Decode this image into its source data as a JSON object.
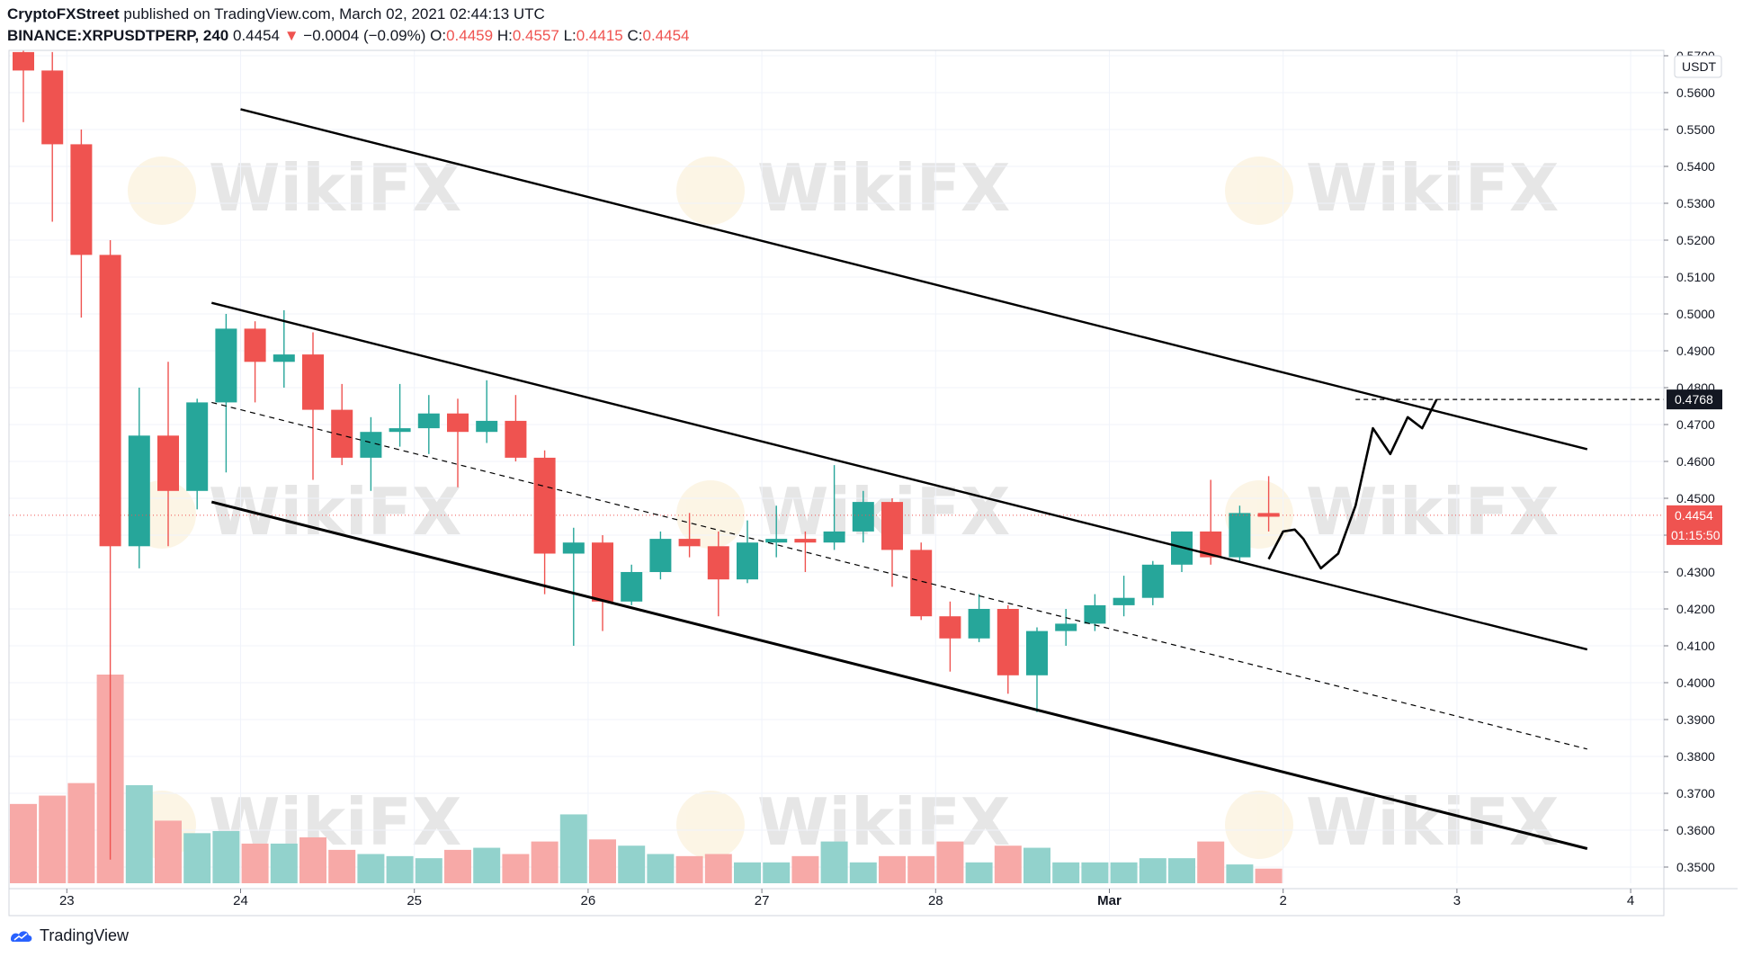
{
  "header": {
    "author": "CryptoFXStreet",
    "published": "published on TradingView.com, March 02, 2021 02:44:13 UTC",
    "symbol": "BINANCE:XRPUSDTPERP, 240",
    "last": "0.4454",
    "arrow": "▼",
    "change": "−0.0004 (−0.09%)",
    "o_label": "O:",
    "o": "0.4459",
    "h_label": "H:",
    "h": "0.4557",
    "l_label": "L:",
    "l": "0.4415",
    "c_label": "C:",
    "c": "0.4454"
  },
  "footer": {
    "brand": "TradingView"
  },
  "watermark": "WikiFX",
  "colors": {
    "up": "#26a69a",
    "down": "#ef5350",
    "vol_up": "#92d2cc",
    "vol_down": "#f7a9a7"
  },
  "chart_data": {
    "type": "candlestick",
    "y_unit": "USDT",
    "ylim": [
      0.345,
      0.571
    ],
    "y_ticks": [
      "0.5700",
      "0.5600",
      "0.5500",
      "0.5400",
      "0.5300",
      "0.5200",
      "0.5100",
      "0.5000",
      "0.4900",
      "0.4800",
      "0.4700",
      "0.4600",
      "0.4500",
      "0.4400",
      "0.4300",
      "0.4200",
      "0.4100",
      "0.4000",
      "0.3900",
      "0.3800",
      "0.3700",
      "0.3600",
      "0.3500"
    ],
    "x_ticks": [
      {
        "label": "23",
        "i": 1.5
      },
      {
        "label": "24",
        "i": 7.5
      },
      {
        "label": "25",
        "i": 13.5
      },
      {
        "label": "26",
        "i": 19.5
      },
      {
        "label": "27",
        "i": 25.5
      },
      {
        "label": "28",
        "i": 31.5
      },
      {
        "label": "Mar",
        "i": 37.5
      },
      {
        "label": "2",
        "i": 43.5
      },
      {
        "label": "3",
        "i": 49.5
      },
      {
        "label": "4",
        "i": 55.5
      }
    ],
    "candles": [
      {
        "o": 0.571,
        "h": 0.575,
        "l": 0.552,
        "c": 0.566
      },
      {
        "o": 0.566,
        "h": 0.571,
        "l": 0.525,
        "c": 0.546
      },
      {
        "o": 0.546,
        "h": 0.55,
        "l": 0.499,
        "c": 0.516
      },
      {
        "o": 0.516,
        "h": 0.52,
        "l": 0.352,
        "c": 0.437
      },
      {
        "o": 0.437,
        "h": 0.48,
        "l": 0.431,
        "c": 0.467
      },
      {
        "o": 0.467,
        "h": 0.487,
        "l": 0.437,
        "c": 0.452
      },
      {
        "o": 0.452,
        "h": 0.477,
        "l": 0.447,
        "c": 0.476
      },
      {
        "o": 0.476,
        "h": 0.5,
        "l": 0.457,
        "c": 0.496
      },
      {
        "o": 0.496,
        "h": 0.498,
        "l": 0.476,
        "c": 0.487
      },
      {
        "o": 0.487,
        "h": 0.501,
        "l": 0.48,
        "c": 0.489
      },
      {
        "o": 0.489,
        "h": 0.495,
        "l": 0.455,
        "c": 0.474
      },
      {
        "o": 0.474,
        "h": 0.481,
        "l": 0.459,
        "c": 0.461
      },
      {
        "o": 0.461,
        "h": 0.472,
        "l": 0.452,
        "c": 0.468
      },
      {
        "o": 0.468,
        "h": 0.481,
        "l": 0.464,
        "c": 0.469
      },
      {
        "o": 0.469,
        "h": 0.478,
        "l": 0.462,
        "c": 0.473
      },
      {
        "o": 0.473,
        "h": 0.477,
        "l": 0.453,
        "c": 0.468
      },
      {
        "o": 0.468,
        "h": 0.482,
        "l": 0.465,
        "c": 0.471
      },
      {
        "o": 0.471,
        "h": 0.478,
        "l": 0.46,
        "c": 0.461
      },
      {
        "o": 0.461,
        "h": 0.463,
        "l": 0.424,
        "c": 0.435
      },
      {
        "o": 0.435,
        "h": 0.442,
        "l": 0.41,
        "c": 0.438
      },
      {
        "o": 0.438,
        "h": 0.44,
        "l": 0.414,
        "c": 0.422
      },
      {
        "o": 0.422,
        "h": 0.432,
        "l": 0.421,
        "c": 0.43
      },
      {
        "o": 0.43,
        "h": 0.441,
        "l": 0.428,
        "c": 0.439
      },
      {
        "o": 0.439,
        "h": 0.446,
        "l": 0.434,
        "c": 0.437
      },
      {
        "o": 0.437,
        "h": 0.441,
        "l": 0.418,
        "c": 0.428
      },
      {
        "o": 0.428,
        "h": 0.444,
        "l": 0.427,
        "c": 0.438
      },
      {
        "o": 0.438,
        "h": 0.448,
        "l": 0.434,
        "c": 0.439
      },
      {
        "o": 0.439,
        "h": 0.441,
        "l": 0.43,
        "c": 0.438
      },
      {
        "o": 0.438,
        "h": 0.459,
        "l": 0.436,
        "c": 0.441
      },
      {
        "o": 0.441,
        "h": 0.452,
        "l": 0.438,
        "c": 0.449
      },
      {
        "o": 0.449,
        "h": 0.45,
        "l": 0.426,
        "c": 0.436
      },
      {
        "o": 0.436,
        "h": 0.438,
        "l": 0.417,
        "c": 0.418
      },
      {
        "o": 0.418,
        "h": 0.422,
        "l": 0.403,
        "c": 0.412
      },
      {
        "o": 0.412,
        "h": 0.424,
        "l": 0.411,
        "c": 0.42
      },
      {
        "o": 0.42,
        "h": 0.421,
        "l": 0.397,
        "c": 0.402
      },
      {
        "o": 0.402,
        "h": 0.415,
        "l": 0.392,
        "c": 0.414
      },
      {
        "o": 0.414,
        "h": 0.42,
        "l": 0.41,
        "c": 0.416
      },
      {
        "o": 0.416,
        "h": 0.424,
        "l": 0.414,
        "c": 0.421
      },
      {
        "o": 0.421,
        "h": 0.429,
        "l": 0.418,
        "c": 0.423
      },
      {
        "o": 0.423,
        "h": 0.433,
        "l": 0.421,
        "c": 0.432
      },
      {
        "o": 0.432,
        "h": 0.441,
        "l": 0.43,
        "c": 0.441
      },
      {
        "o": 0.441,
        "h": 0.455,
        "l": 0.432,
        "c": 0.434
      },
      {
        "o": 0.434,
        "h": 0.448,
        "l": 0.433,
        "c": 0.446
      },
      {
        "o": 0.446,
        "h": 0.456,
        "l": 0.441,
        "c": 0.445
      }
    ],
    "volume_max": 1.0,
    "volumes": [
      0.38,
      0.42,
      0.48,
      1.0,
      0.47,
      0.3,
      0.24,
      0.25,
      0.19,
      0.19,
      0.22,
      0.16,
      0.14,
      0.13,
      0.12,
      0.16,
      0.17,
      0.14,
      0.2,
      0.33,
      0.21,
      0.18,
      0.14,
      0.13,
      0.14,
      0.1,
      0.1,
      0.13,
      0.2,
      0.1,
      0.13,
      0.13,
      0.2,
      0.1,
      0.18,
      0.17,
      0.1,
      0.1,
      0.1,
      0.12,
      0.12,
      0.2,
      0.09,
      0.07
    ],
    "current_price": {
      "value": 0.4454,
      "label": "0.4454",
      "countdown": "01:15:50"
    },
    "target_price": {
      "value": 0.4768,
      "label": "0.4768"
    },
    "channels": [
      {
        "name": "upper-channel-line",
        "style": "solid",
        "p1": {
          "i": 7.5,
          "v": 0.5555
        },
        "p2": {
          "i": 54.0,
          "v": 0.4633
        }
      },
      {
        "name": "middle-channel-top",
        "style": "solid",
        "p1": {
          "i": 6.5,
          "v": 0.503
        },
        "p2": {
          "i": 54.0,
          "v": 0.409
        }
      },
      {
        "name": "middle-dashed-line",
        "style": "dashed",
        "p1": {
          "i": 6.5,
          "v": 0.476
        },
        "p2": {
          "i": 54.0,
          "v": 0.382
        }
      },
      {
        "name": "lower-channel-line",
        "style": "solid",
        "p1": {
          "i": 6.5,
          "v": 0.449
        },
        "p2": {
          "i": 54.0,
          "v": 0.355
        }
      }
    ],
    "projection_path": [
      {
        "i": 43.0,
        "v": 0.4335
      },
      {
        "i": 43.5,
        "v": 0.441
      },
      {
        "i": 43.9,
        "v": 0.4415
      },
      {
        "i": 44.2,
        "v": 0.439
      },
      {
        "i": 44.8,
        "v": 0.431
      },
      {
        "i": 45.4,
        "v": 0.435
      },
      {
        "i": 46.0,
        "v": 0.448
      },
      {
        "i": 46.6,
        "v": 0.469
      },
      {
        "i": 47.2,
        "v": 0.462
      },
      {
        "i": 47.8,
        "v": 0.472
      },
      {
        "i": 48.3,
        "v": 0.469
      },
      {
        "i": 48.8,
        "v": 0.4768
      }
    ]
  }
}
